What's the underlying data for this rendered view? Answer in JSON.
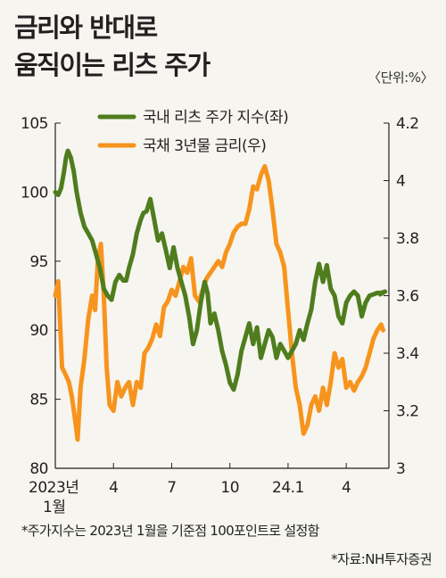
{
  "title_lines": [
    "금리와 반대로",
    "움직이는 리츠 주가"
  ],
  "unit": "〈단위:%〉",
  "note": "*주가지수는 2023년 1월을 기준점 100포인트로 설정함",
  "source": "*자료:NH투자증권",
  "colors": {
    "reit": "#4f7d1e",
    "bond": "#f7941d",
    "axis": "#231f20",
    "background": "#f6f5ef"
  },
  "chart_data": {
    "type": "line",
    "legend_placement": "top-center",
    "grid": false,
    "x": {
      "range": [
        0,
        17.2
      ],
      "ticks": [
        {
          "value": 0,
          "label": "2023년",
          "sublabel": "1월"
        },
        {
          "value": 3,
          "label": "4"
        },
        {
          "value": 6,
          "label": "7"
        },
        {
          "value": 9,
          "label": "10"
        },
        {
          "value": 12,
          "label": "24.1"
        },
        {
          "value": 15,
          "label": "4"
        }
      ]
    },
    "y_left": {
      "range": [
        80,
        105
      ],
      "ticks": [
        80,
        85,
        90,
        95,
        100,
        105
      ]
    },
    "y_right": {
      "range": [
        3,
        4.2
      ],
      "ticks": [
        "3",
        "3.2",
        "3.4",
        "3.6",
        "3.8",
        "4",
        "4.2"
      ]
    },
    "series": [
      {
        "name": "국내 리츠 주가 지수(좌)",
        "axis": "left",
        "x": [
          0,
          0.15,
          0.3,
          0.45,
          0.55,
          0.65,
          0.8,
          0.95,
          1.1,
          1.3,
          1.5,
          1.7,
          1.9,
          2.1,
          2.3,
          2.5,
          2.7,
          2.9,
          3.1,
          3.3,
          3.5,
          3.65,
          3.8,
          4.0,
          4.2,
          4.4,
          4.55,
          4.7,
          4.9,
          5.1,
          5.3,
          5.5,
          5.7,
          5.9,
          6.1,
          6.3,
          6.5,
          6.7,
          6.9,
          7.1,
          7.3,
          7.5,
          7.7,
          7.85,
          8.0,
          8.2,
          8.4,
          8.6,
          8.8,
          9.0,
          9.2,
          9.4,
          9.6,
          9.8,
          10.0,
          10.2,
          10.4,
          10.6,
          10.8,
          11.0,
          11.2,
          11.4,
          11.6,
          11.8,
          12.0,
          12.2,
          12.4,
          12.6,
          12.8,
          13.0,
          13.2,
          13.4,
          13.6,
          13.8,
          14.0,
          14.2,
          14.4,
          14.6,
          14.8,
          15.0,
          15.2,
          15.4,
          15.6,
          15.8,
          16.0,
          16.2,
          16.4,
          16.6,
          16.8,
          17.0
        ],
        "values": [
          100,
          99.8,
          100.3,
          101.5,
          102.5,
          103,
          102.5,
          101.5,
          100,
          98.5,
          97.5,
          97,
          96.5,
          95.5,
          94.5,
          93,
          92.5,
          92.2,
          93.5,
          94,
          93.6,
          93.6,
          94.5,
          95.5,
          97,
          98,
          98.5,
          98.6,
          99.5,
          98,
          96.5,
          97,
          95.8,
          94.5,
          96,
          94.5,
          93.5,
          92.5,
          91,
          89,
          90,
          92,
          93.5,
          92.7,
          90.5,
          91.2,
          90,
          88.5,
          87.5,
          86.2,
          85.7,
          86.8,
          88.5,
          89.5,
          90.5,
          89,
          90.2,
          88,
          89,
          90,
          89.5,
          88,
          89,
          88.5,
          88,
          88.5,
          89,
          90,
          89.3,
          90.5,
          91.5,
          93.5,
          94.8,
          93.5,
          94.7,
          93,
          92.5,
          91,
          90.5,
          92,
          92.5,
          92.8,
          92.5,
          91,
          92,
          92.5,
          92.6,
          92.7,
          92.7,
          92.8
        ],
        "end_x": 16.75,
        "end_value": 92.6
      },
      {
        "name": "국채 3년물 금리(우)",
        "axis": "right",
        "x": [
          0,
          0.15,
          0.25,
          0.35,
          0.5,
          0.7,
          0.85,
          1.0,
          1.15,
          1.3,
          1.5,
          1.7,
          1.9,
          2.05,
          2.2,
          2.35,
          2.5,
          2.65,
          2.8,
          3.0,
          3.2,
          3.4,
          3.6,
          3.8,
          4.0,
          4.2,
          4.4,
          4.6,
          4.8,
          5.0,
          5.2,
          5.4,
          5.6,
          5.8,
          6.0,
          6.2,
          6.4,
          6.6,
          6.8,
          7.0,
          7.2,
          7.4,
          7.6,
          7.8,
          8.0,
          8.2,
          8.4,
          8.6,
          8.8,
          9.0,
          9.2,
          9.4,
          9.6,
          9.8,
          10.0,
          10.2,
          10.4,
          10.6,
          10.8,
          11.0,
          11.2,
          11.4,
          11.6,
          11.8,
          12.0,
          12.2,
          12.4,
          12.6,
          12.8,
          13.0,
          13.2,
          13.4,
          13.6,
          13.8,
          14.0,
          14.2,
          14.4,
          14.6,
          14.8,
          15.0,
          15.2,
          15.4,
          15.6,
          15.8,
          16.0,
          16.2,
          16.4,
          16.6,
          16.8
        ],
        "values": [
          3.6,
          3.65,
          3.5,
          3.35,
          3.33,
          3.3,
          3.25,
          3.18,
          3.1,
          3.28,
          3.38,
          3.52,
          3.6,
          3.55,
          3.73,
          3.78,
          3.6,
          3.35,
          3.22,
          3.2,
          3.3,
          3.25,
          3.28,
          3.3,
          3.22,
          3.3,
          3.28,
          3.4,
          3.42,
          3.45,
          3.5,
          3.46,
          3.56,
          3.58,
          3.62,
          3.6,
          3.65,
          3.7,
          3.68,
          3.73,
          3.6,
          3.58,
          3.62,
          3.66,
          3.68,
          3.7,
          3.72,
          3.7,
          3.75,
          3.78,
          3.82,
          3.84,
          3.85,
          3.85,
          3.9,
          3.98,
          3.97,
          4.02,
          4.05,
          4.0,
          3.9,
          3.78,
          3.75,
          3.7,
          3.55,
          3.4,
          3.28,
          3.22,
          3.12,
          3.15,
          3.22,
          3.25,
          3.2,
          3.28,
          3.22,
          3.3,
          3.4,
          3.35,
          3.38,
          3.28,
          3.3,
          3.27,
          3.3,
          3.32,
          3.35,
          3.4,
          3.45,
          3.48,
          3.5
        ],
        "end_x": 16.9,
        "end_value": 3.48
      }
    ]
  }
}
